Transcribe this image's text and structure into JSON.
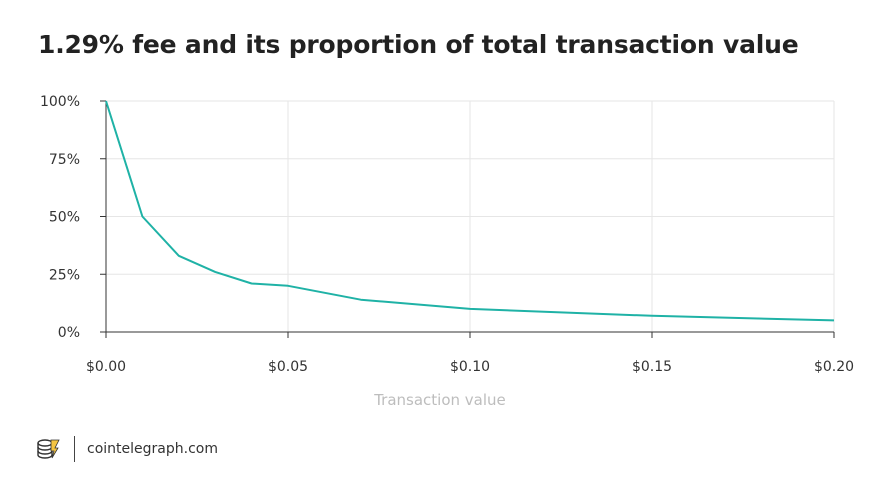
{
  "title": "1.29% fee and its proportion of total transaction value",
  "footer": {
    "site": "cointelegraph.com",
    "logo_icon": "cointelegraph-logo-icon"
  },
  "colors": {
    "line": "#1fb2a6",
    "grid": "#e6e6e6",
    "axis": "#333333",
    "xlabel": "#bdbdbd"
  },
  "chart_data": {
    "type": "line",
    "title": "1.29% fee and its proportion of total transaction value",
    "xlabel": "Transaction value",
    "ylabel": "",
    "xlim": [
      0,
      0.2
    ],
    "ylim": [
      0,
      100
    ],
    "x_ticks": [
      0,
      0.05,
      0.1,
      0.15,
      0.2
    ],
    "x_tick_labels": [
      "$0.00",
      "$0.05",
      "$0.10",
      "$0.15",
      "$0.20"
    ],
    "y_ticks": [
      0,
      25,
      50,
      75,
      100
    ],
    "y_tick_labels": [
      "0%",
      "25%",
      "50%",
      "75%",
      "100%"
    ],
    "grid": true,
    "series": [
      {
        "x": [
          0.0,
          0.01,
          0.02,
          0.03,
          0.04,
          0.05,
          0.07,
          0.1,
          0.15,
          0.2
        ],
        "y": [
          100,
          50,
          33,
          26,
          21,
          20,
          14,
          10,
          7,
          5
        ]
      }
    ]
  }
}
